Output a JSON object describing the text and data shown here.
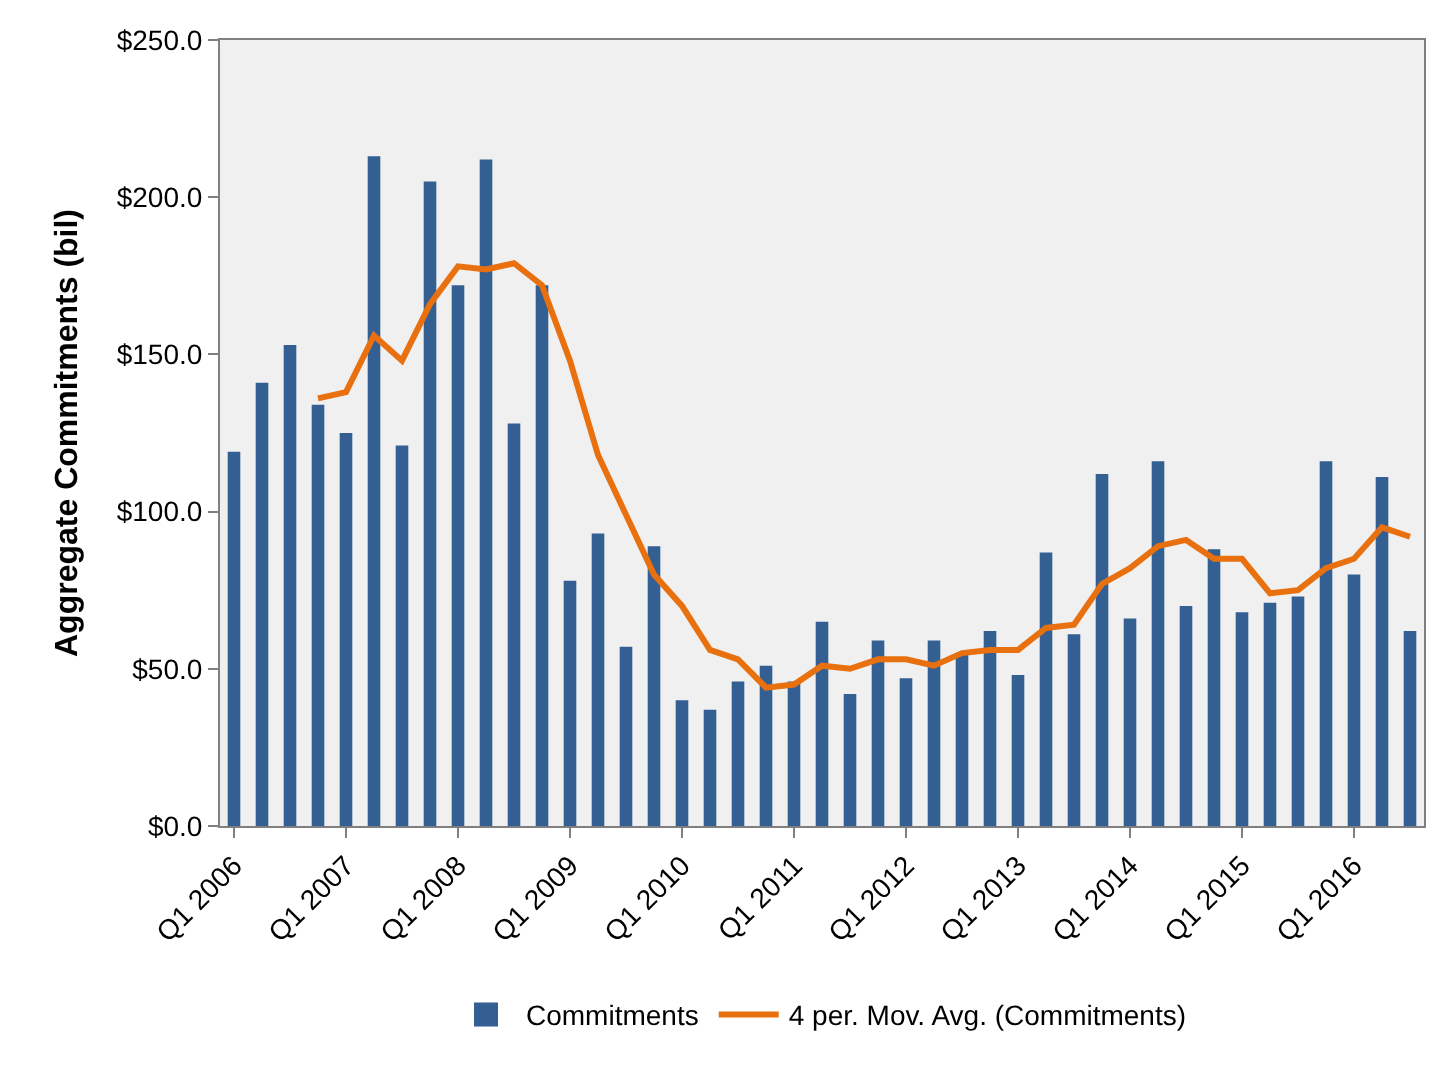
{
  "chart_data": {
    "type": "bar",
    "ylabel": "Aggregate Commitments (bil)",
    "categories": [
      "Q1 2006",
      null,
      null,
      null,
      "Q1 2007",
      null,
      null,
      null,
      "Q1 2008",
      null,
      null,
      null,
      "Q1 2009",
      null,
      null,
      null,
      "Q1 2010",
      null,
      null,
      null,
      "Q1 2011",
      null,
      null,
      null,
      "Q1 2012",
      null,
      null,
      null,
      "Q1 2013",
      null,
      null,
      null,
      "Q1 2014",
      null,
      null,
      null,
      "Q1 2015",
      null,
      null,
      null,
      "Q1 2016",
      null,
      null
    ],
    "series": [
      {
        "name": "Commitments",
        "color": "#335f92",
        "values": [
          119,
          141,
          153,
          134,
          125,
          213,
          121,
          205,
          172,
          212,
          128,
          172,
          78,
          93,
          57,
          89,
          40,
          37,
          46,
          51,
          46,
          65,
          42,
          59,
          47,
          59,
          55,
          62,
          48,
          87,
          61,
          112,
          66,
          116,
          70,
          88,
          68,
          71,
          73,
          116,
          80,
          111,
          62
        ]
      },
      {
        "name": "4 per. Mov. Avg. (Commitments)",
        "type": "line",
        "color": "#e8700f",
        "values": [
          null,
          null,
          null,
          136,
          138,
          156,
          148,
          166,
          178,
          177,
          179,
          172,
          148,
          118,
          99,
          80,
          70,
          56,
          53,
          44,
          45,
          51,
          50,
          53,
          53,
          51,
          55,
          56,
          56,
          63,
          64,
          77,
          82,
          89,
          91,
          85,
          85,
          74,
          75,
          82,
          85,
          95,
          92
        ]
      }
    ],
    "ylim": [
      0,
      250
    ],
    "yticks": [
      {
        "value": 0,
        "label": "$0.0"
      },
      {
        "value": 50,
        "label": "$50.0"
      },
      {
        "value": 100,
        "label": "$100.0"
      },
      {
        "value": 150,
        "label": "$150.0"
      },
      {
        "value": 200,
        "label": "$200.0"
      },
      {
        "value": 250,
        "label": "$250.0"
      }
    ],
    "grid": false,
    "legend": "bottom",
    "marker": "none",
    "line_style": "solid"
  }
}
